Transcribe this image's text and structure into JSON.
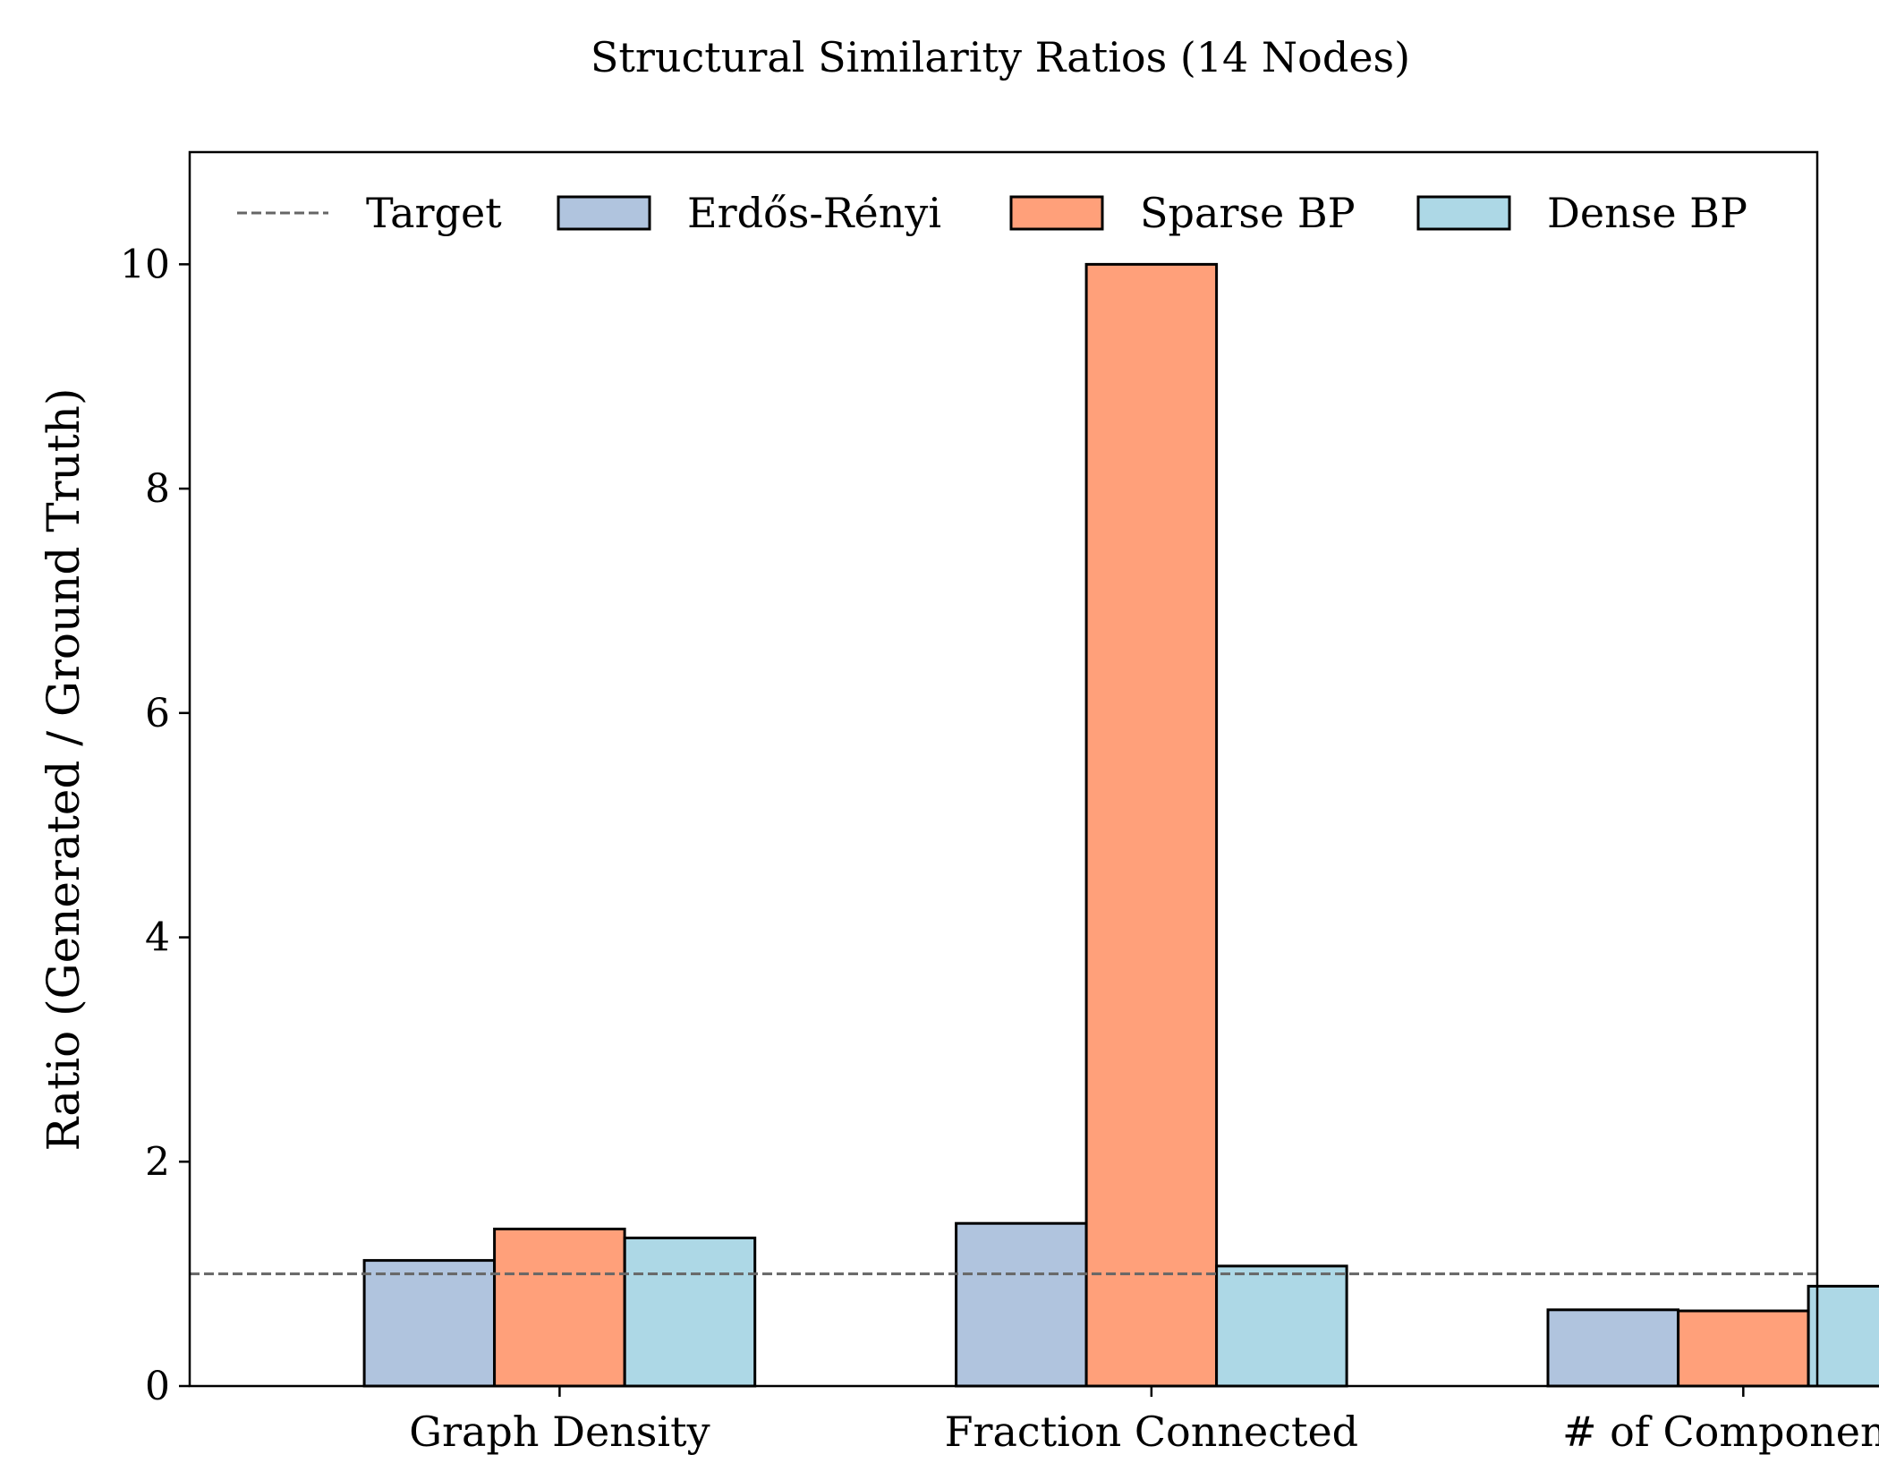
{
  "chart_data": {
    "type": "bar",
    "title": "Structural Similarity Ratios (14 Nodes)",
    "xlabel": "",
    "ylabel": "Ratio (Generated / Ground Truth)",
    "ylim": [
      0,
      11
    ],
    "yticks": [
      0,
      2,
      4,
      6,
      8,
      10
    ],
    "grid": false,
    "legend_position": "top",
    "categories": [
      "Graph Density",
      "Fraction Connected",
      "# of Components"
    ],
    "series": [
      {
        "name": "Erdős-Rényi",
        "color": "#b0c4de",
        "values": [
          1.12,
          1.45,
          0.68
        ]
      },
      {
        "name": "Sparse BP",
        "color": "#ffa07a",
        "values": [
          1.4,
          10.0,
          0.67
        ]
      },
      {
        "name": "Dense BP",
        "color": "#add8e6",
        "values": [
          1.32,
          1.07,
          0.89
        ]
      }
    ],
    "reference_line": {
      "name": "Target",
      "value": 1.0,
      "style": "dashed",
      "color": "#666666"
    }
  }
}
